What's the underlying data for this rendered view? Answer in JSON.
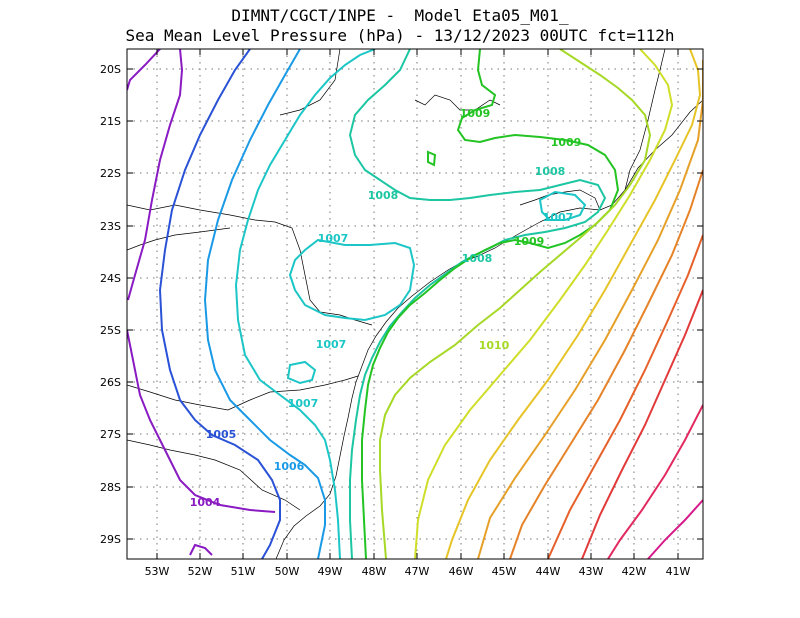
{
  "title": {
    "line1": "DIMNT/CGCT/INPE -  Model Eta05_M01_",
    "line2": "Sea Mean Level Pressure (hPa) - 13/12/2023 00UTC fct=112h"
  },
  "axes": {
    "lat_labels": [
      "20S",
      "21S",
      "22S",
      "23S",
      "24S",
      "25S",
      "26S",
      "27S",
      "28S",
      "29S"
    ],
    "lon_labels": [
      "53W",
      "52W",
      "51W",
      "50W",
      "49W",
      "48W",
      "47W",
      "46W",
      "45W",
      "44W",
      "43W",
      "42W",
      "41W"
    ]
  },
  "contour_labels": [
    {
      "text": "1009",
      "color": "#22c322"
    },
    {
      "text": "1009",
      "color": "#22c322"
    },
    {
      "text": "1009",
      "color": "#22c322"
    },
    {
      "text": "1008",
      "color": "#1cc6a2"
    },
    {
      "text": "1008",
      "color": "#1cc6a2"
    },
    {
      "text": "1008",
      "color": "#1cc6a2"
    },
    {
      "text": "1007",
      "color": "#1cc6c6"
    },
    {
      "text": "1007",
      "color": "#1cc6c6"
    },
    {
      "text": "1007",
      "color": "#1cc6c6"
    },
    {
      "text": "1007",
      "color": "#1cc6c6"
    },
    {
      "text": "1010",
      "color": "#a6d826"
    },
    {
      "text": "1006",
      "color": "#1a9ae6"
    },
    {
      "text": "1005",
      "color": "#2a52d6"
    },
    {
      "text": "1004",
      "color": "#8a1ac2"
    }
  ]
}
